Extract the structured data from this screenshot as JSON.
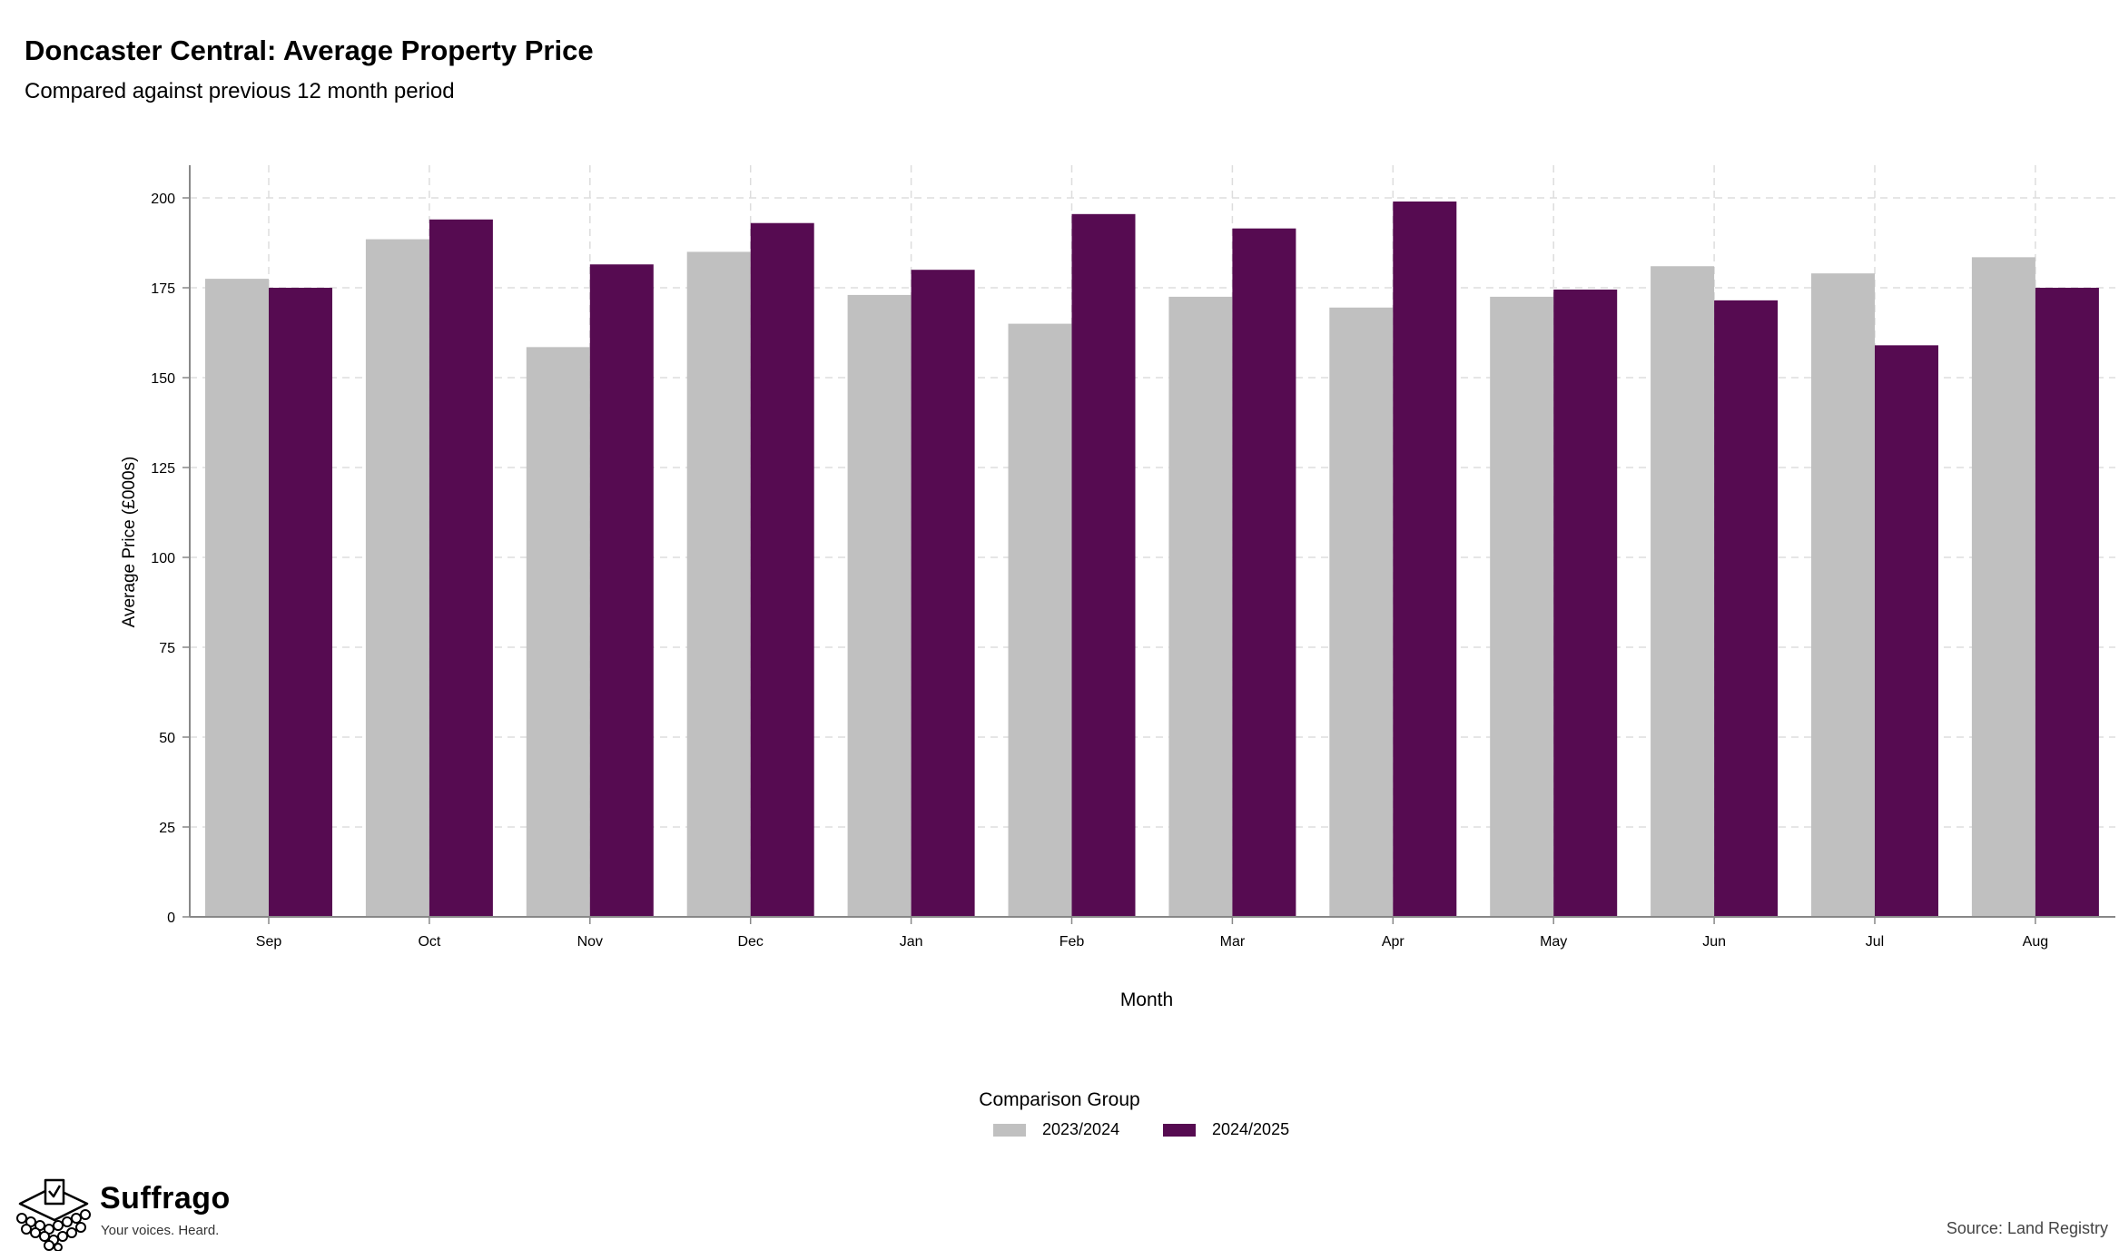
{
  "title": "Doncaster Central: Average Property Price",
  "subtitle": "Compared against previous 12 month period",
  "legend_title": "Comparison Group",
  "brand": {
    "name": "Suffrago",
    "tagline": "Your voices. Heard."
  },
  "source": "Source: Land Registry",
  "colors": {
    "series_2023": "#c0c0c0",
    "series_2024": "#560b51",
    "grid": "#dddddd",
    "axis": "#888888"
  },
  "chart_data": {
    "type": "bar",
    "xlabel": "Month",
    "ylabel": "Average Price (£000s)",
    "ylim": [
      0,
      200
    ],
    "yticks": [
      0,
      25,
      50,
      75,
      100,
      125,
      150,
      175,
      200
    ],
    "grid": true,
    "legend_position": "bottom",
    "categories": [
      "Sep",
      "Oct",
      "Nov",
      "Dec",
      "Jan",
      "Feb",
      "Mar",
      "Apr",
      "May",
      "Jun",
      "Jul",
      "Aug"
    ],
    "series": [
      {
        "name": "2023/2024",
        "color": "#c0c0c0",
        "values": [
          177.5,
          188.5,
          158.5,
          185,
          173,
          165,
          172.5,
          169.5,
          172.5,
          181,
          179,
          183.5
        ]
      },
      {
        "name": "2024/2025",
        "color": "#560b51",
        "values": [
          175,
          194,
          181.5,
          193,
          180,
          195.5,
          191.5,
          199,
          174.5,
          171.5,
          159,
          175
        ]
      }
    ]
  }
}
